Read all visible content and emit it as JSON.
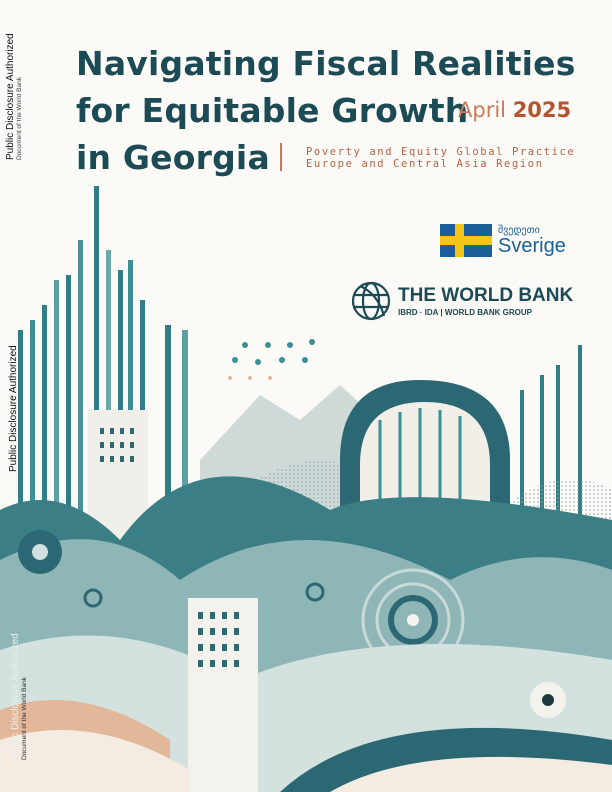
{
  "cover": {
    "title_lines": [
      "Navigating Fiscal Realities",
      "for Equitable Growth",
      "in Georgia"
    ],
    "date_month": "April",
    "date_year": "2025",
    "subtitle_lines": [
      "Poverty and Equity Global Practice",
      "Europe and Central Asia Region"
    ]
  },
  "side_labels": {
    "top_main": "Public Disclosure Authorized",
    "top_sub": "Document of the World Bank",
    "mid_main": "Public Disclosure Authorized",
    "bottom_main": "Public Disclosure Authorized",
    "bottom_sub": "Document of the World Bank"
  },
  "logos": {
    "sweden_georgian": "შვედეთი",
    "sweden_name": "Sverige",
    "worldbank_name": "THE WORLD BANK",
    "worldbank_sub": "IBRD · IDA | WORLD BANK GROUP"
  },
  "colors": {
    "title": "#1c4a55",
    "accent": "#b5532f",
    "teal": "#2f7d86",
    "peach": "#e3b79a"
  }
}
